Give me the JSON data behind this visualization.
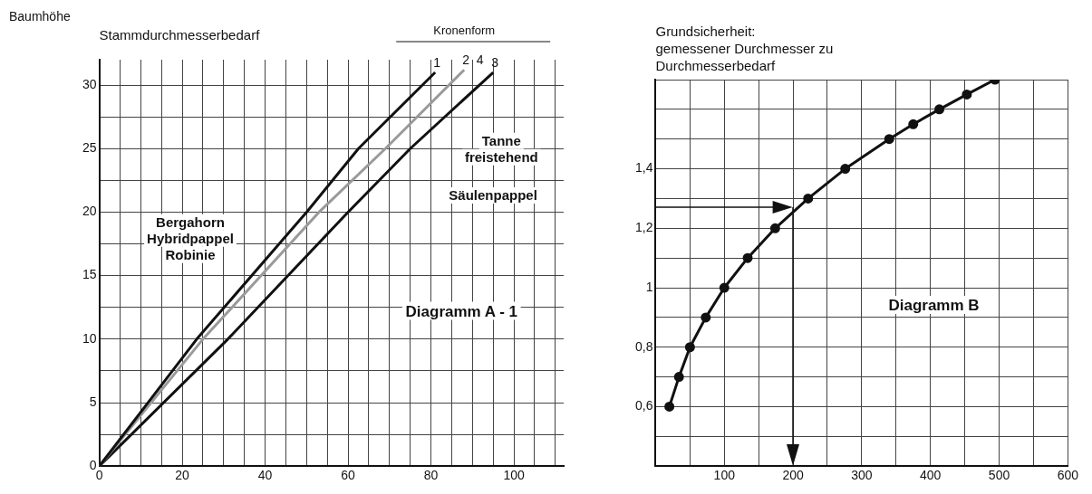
{
  "chart_data": [
    {
      "type": "line",
      "title": "Stammdurchmesserbedarf",
      "ylabel": "Baumhöhe",
      "legend_title": "Kronenform",
      "series": [
        {
          "name": "1",
          "color": "#111111",
          "x": [
            0,
            23.5,
            50,
            62.5,
            81
          ],
          "values": [
            0,
            10,
            20,
            25,
            31
          ]
        },
        {
          "name": "2",
          "color": "#9a9a9a",
          "x": [
            0,
            25,
            53,
            69,
            88
          ],
          "values": [
            0,
            10,
            20,
            25,
            31.2
          ]
        },
        {
          "name": "3",
          "color": "#111111",
          "x": [
            0,
            31,
            60,
            75,
            95
          ],
          "values": [
            0,
            10,
            20,
            25,
            31
          ]
        }
      ],
      "annotations": [
        "4",
        "Bergahorn\nHybridpappel\nRobinie",
        "Tanne\nfreistehend",
        "Säulenpappel",
        "Diagramm A - 1"
      ],
      "xlim": [
        0,
        112
      ],
      "ylim": [
        0,
        32
      ],
      "xticks": [
        0,
        {
          "value": 5,
          "label": null
        },
        {
          "value": 10,
          "label": null
        },
        {
          "value": 15,
          "label": null
        },
        20,
        {
          "value": 25,
          "label": null
        },
        {
          "value": 30,
          "label": null
        },
        {
          "value": 35,
          "label": null
        },
        40,
        {
          "value": 45,
          "label": null
        },
        {
          "value": 50,
          "label": null
        },
        {
          "value": 55,
          "label": null
        },
        60,
        {
          "value": 65,
          "label": null
        },
        {
          "value": 70,
          "label": null
        },
        {
          "value": 75,
          "label": null
        },
        80,
        {
          "value": 85,
          "label": null
        },
        {
          "value": 90,
          "label": null
        },
        {
          "value": 95,
          "label": null
        },
        100,
        {
          "value": 105,
          "label": null
        },
        {
          "value": 110,
          "label": null
        }
      ],
      "yticks": [
        0,
        {
          "value": 2.5,
          "label": null
        },
        5,
        {
          "value": 7.5,
          "label": null
        },
        10,
        {
          "value": 12.5,
          "label": null
        },
        15,
        {
          "value": 17.5,
          "label": null
        },
        20,
        {
          "value": 22.5,
          "label": null
        },
        25,
        {
          "value": 27.5,
          "label": null
        },
        30
      ],
      "grid": true,
      "legend": false,
      "marker": "none",
      "line_style": "solid"
    },
    {
      "type": "line",
      "title": "Grundsicherheit:\ngemessener Durchmesser zu\nDurchmesserbedarf",
      "series": [
        {
          "color": "#111111",
          "x": [
            20,
            34,
            50,
            73,
            100,
            134,
            174,
            222,
            276,
            340,
            375,
            413,
            453,
            494
          ],
          "values": [
            0.6,
            0.7,
            0.8,
            0.9,
            1.0,
            1.1,
            1.2,
            1.3,
            1.4,
            1.5,
            1.55,
            1.6,
            1.65,
            1.7
          ]
        }
      ],
      "annotations": [
        "Diagramm B"
      ],
      "ref_lines": [
        {
          "axis": "y",
          "value": 1.27
        },
        {
          "axis": "x",
          "value": 200
        }
      ],
      "xlim": [
        0,
        600
      ],
      "ylim": [
        0.4,
        1.7
      ],
      "xticks": [
        {
          "value": 0,
          "label": null
        },
        {
          "value": 50,
          "label": null
        },
        100,
        {
          "value": 150,
          "label": null
        },
        200,
        {
          "value": 250,
          "label": null
        },
        300,
        {
          "value": 350,
          "label": null
        },
        400,
        {
          "value": 450,
          "label": null
        },
        500,
        {
          "value": 550,
          "label": null
        },
        600
      ],
      "yticks": [
        {
          "value": 0.4,
          "label": null
        },
        {
          "value": 0.5,
          "label": null
        },
        {
          "value": 0.6,
          "label": "0,6"
        },
        {
          "value": 0.7,
          "label": null
        },
        {
          "value": 0.8,
          "label": "0,8"
        },
        {
          "value": 0.9,
          "label": null
        },
        {
          "value": 1,
          "label": "1"
        },
        {
          "value": 1.1,
          "label": null
        },
        {
          "value": 1.2,
          "label": "1,2"
        },
        {
          "value": 1.3,
          "label": null
        },
        {
          "value": 1.4,
          "label": "1,4"
        },
        {
          "value": 1.5,
          "label": null
        },
        {
          "value": 1.6,
          "label": null
        },
        {
          "value": 1.7,
          "label": null
        }
      ],
      "grid": true,
      "legend": false,
      "marker": "circle",
      "line_style": "solid"
    }
  ]
}
